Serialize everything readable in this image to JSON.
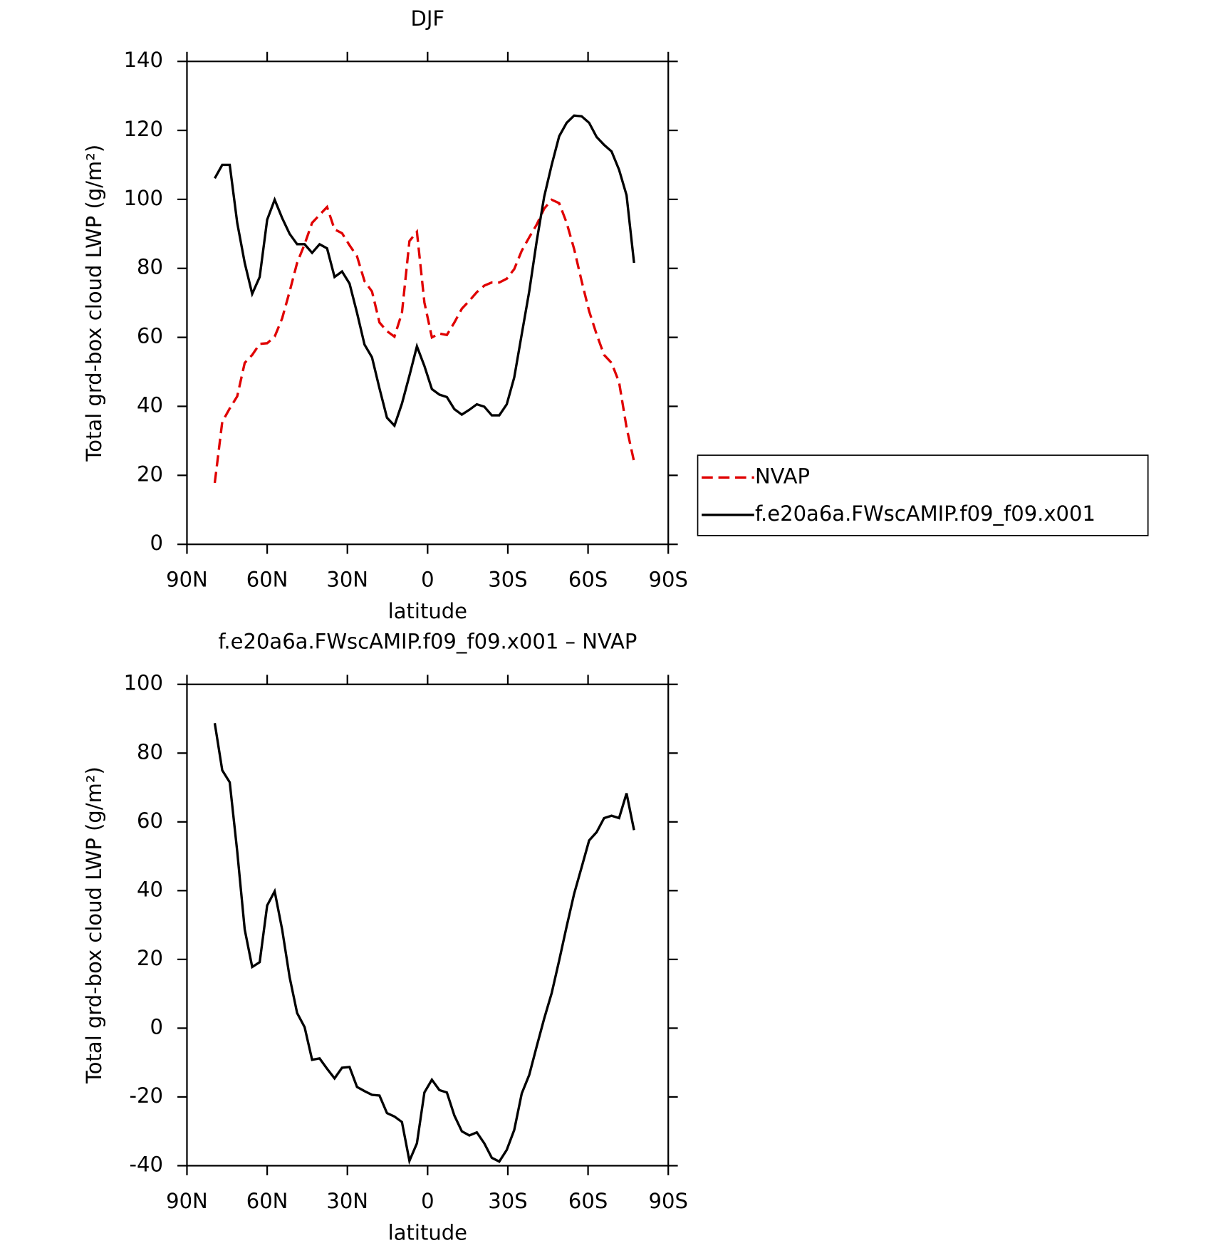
{
  "chart_data": [
    {
      "type": "line",
      "title": "DJF",
      "xlabel": "latitude",
      "ylabel": "Total grd-box cloud LWP (g/m²)",
      "x": [
        79.6,
        76.8,
        74.0,
        71.2,
        68.4,
        65.6,
        62.8,
        60.0,
        57.2,
        54.4,
        51.6,
        48.8,
        46.0,
        43.2,
        40.4,
        37.6,
        34.8,
        32.0,
        29.2,
        26.4,
        23.6,
        20.8,
        18.0,
        15.2,
        12.4,
        9.6,
        6.8,
        4.0,
        1.2,
        -1.6,
        -4.4,
        -7.2,
        -10.0,
        -12.8,
        -15.6,
        -18.4,
        -21.2,
        -24.0,
        -26.8,
        -29.6,
        -32.4,
        -35.2,
        -38.0,
        -40.8,
        -43.6,
        -46.4,
        -49.2,
        -52.0,
        -54.8,
        -57.6,
        -60.4,
        -63.2,
        -66.0,
        -68.8,
        -71.6,
        -74.4,
        -77.2
      ],
      "series": [
        {
          "name": "NVAP",
          "color": "#e00000",
          "linestyle": "dashed",
          "values": [
            17.8,
            35.5,
            39.4,
            42.9,
            52.6,
            54.9,
            58.1,
            58.3,
            60.2,
            65.5,
            73.3,
            81.6,
            87.0,
            93.2,
            95.5,
            97.8,
            91.3,
            90.2,
            86.7,
            83.5,
            76.3,
            73.3,
            64.3,
            61.8,
            60.2,
            67.1,
            87.9,
            90.6,
            70.1,
            60.0,
            61.1,
            60.7,
            64.3,
            68.3,
            70.6,
            73.1,
            75.0,
            75.9,
            75.9,
            77.0,
            79.8,
            85.1,
            89.0,
            92.7,
            97.3,
            99.9,
            98.9,
            93.2,
            85.6,
            76.3,
            67.6,
            60.9,
            54.9,
            52.6,
            47.0,
            33.9,
            24.0
          ]
        },
        {
          "name": "f.e20a6a.FWscAMIP.f09_f09.x001",
          "color": "#000000",
          "linestyle": "solid",
          "values": [
            106.1,
            110.0,
            110.0,
            93.2,
            81.6,
            72.6,
            77.5,
            94.1,
            99.9,
            94.6,
            90.0,
            87.0,
            87.0,
            84.5,
            87.0,
            85.8,
            77.5,
            79.1,
            75.6,
            67.1,
            57.9,
            54.2,
            45.2,
            36.7,
            34.4,
            40.8,
            48.9,
            57.4,
            51.7,
            45.0,
            43.4,
            42.7,
            39.2,
            37.6,
            39.0,
            40.6,
            39.9,
            37.4,
            37.4,
            40.6,
            48.4,
            60.9,
            73.3,
            87.9,
            100.8,
            110.0,
            118.3,
            122.2,
            124.3,
            124.1,
            122.2,
            118.1,
            115.8,
            113.9,
            108.6,
            101.2,
            81.6
          ]
        }
      ],
      "xlim": [
        90,
        -90
      ],
      "xticks": [
        {
          "value": 90,
          "label": "90N"
        },
        {
          "value": 60,
          "label": "60N"
        },
        {
          "value": 30,
          "label": "30N"
        },
        0,
        {
          "value": -30,
          "label": "30S"
        },
        {
          "value": -60,
          "label": "60S"
        },
        {
          "value": -90,
          "label": "90S"
        }
      ],
      "ylim": [
        0,
        140
      ],
      "yticks": [
        0,
        20,
        40,
        60,
        80,
        100,
        120,
        140
      ],
      "legend": "outside-right"
    },
    {
      "type": "line",
      "title": "f.e20a6a.FWscAMIP.f09_f09.x001 – NVAP",
      "xlabel": "latitude",
      "ylabel": "Total grd-box cloud LWP (g/m²)",
      "x": [
        79.6,
        76.8,
        74.0,
        71.2,
        68.4,
        65.6,
        62.8,
        60.0,
        57.2,
        54.4,
        51.6,
        48.8,
        46.0,
        43.2,
        40.4,
        37.6,
        34.8,
        32.0,
        29.2,
        26.4,
        23.6,
        20.8,
        18.0,
        15.2,
        12.4,
        9.6,
        6.8,
        4.0,
        1.2,
        -1.6,
        -4.4,
        -7.2,
        -10.0,
        -12.8,
        -15.6,
        -18.4,
        -21.2,
        -24.0,
        -26.8,
        -29.6,
        -32.4,
        -35.2,
        -38.0,
        -40.8,
        -43.6,
        -46.4,
        -49.2,
        -52.0,
        -54.8,
        -57.6,
        -60.4,
        -63.2,
        -66.0,
        -68.8,
        -71.6,
        -74.4,
        -77.2
      ],
      "color": "#000000",
      "values": [
        88.7,
        75.0,
        71.5,
        51.4,
        28.7,
        17.8,
        19.2,
        35.7,
        39.8,
        28.7,
        14.8,
        4.4,
        0.3,
        -9.2,
        -8.8,
        -11.8,
        -14.6,
        -11.5,
        -11.3,
        -17.1,
        -18.3,
        -19.4,
        -19.6,
        -24.7,
        -25.7,
        -27.3,
        -38.6,
        -33.5,
        -18.7,
        -15.0,
        -18.0,
        -18.7,
        -25.4,
        -30.0,
        -31.2,
        -30.3,
        -33.5,
        -37.7,
        -38.8,
        -35.4,
        -29.6,
        -19.0,
        -13.6,
        -5.3,
        2.8,
        10.2,
        19.7,
        29.6,
        39.1,
        46.8,
        54.6,
        57.0,
        61.1,
        61.8,
        61.1,
        68.3,
        57.6
      ],
      "xlim": [
        90,
        -90
      ],
      "xticks": [
        {
          "value": 90,
          "label": "90N"
        },
        {
          "value": 60,
          "label": "60N"
        },
        {
          "value": 30,
          "label": "30N"
        },
        0,
        {
          "value": -30,
          "label": "30S"
        },
        {
          "value": -60,
          "label": "60S"
        },
        {
          "value": -90,
          "label": "90S"
        }
      ],
      "ylim": [
        -40,
        100
      ],
      "yticks": [
        -40,
        -20,
        0,
        20,
        40,
        60,
        80,
        100
      ]
    }
  ]
}
